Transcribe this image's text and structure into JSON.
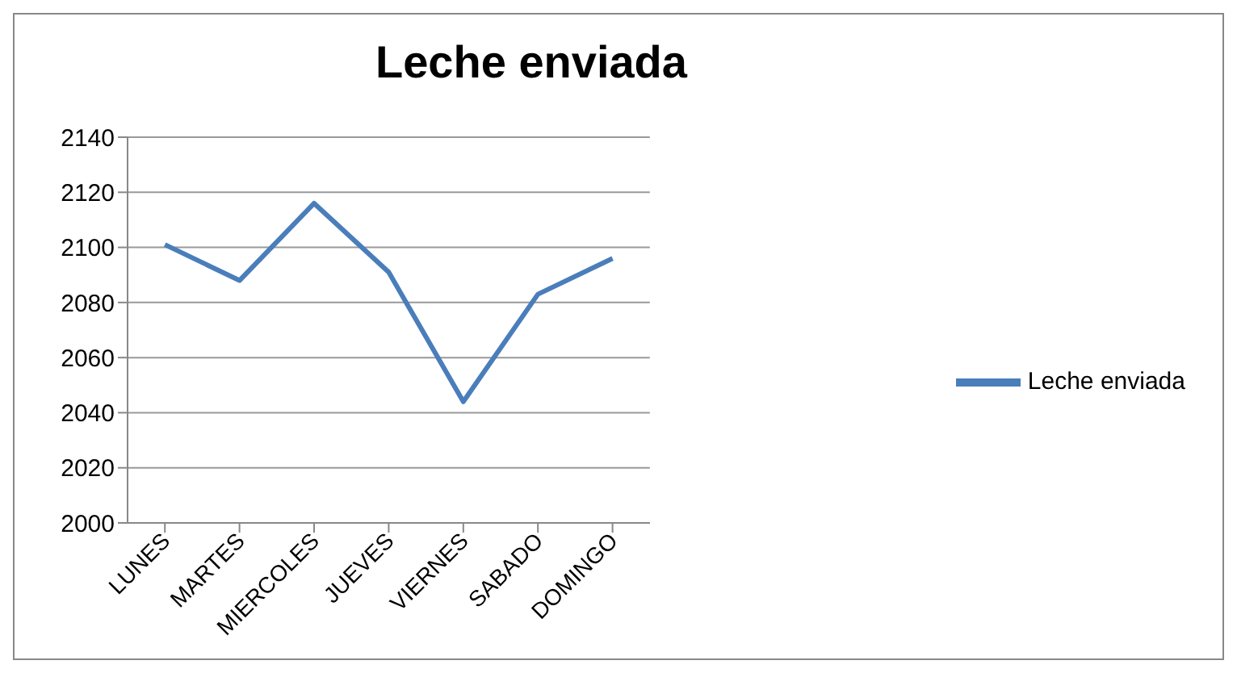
{
  "chart_data": {
    "type": "line",
    "title": "Leche enviada",
    "categories": [
      "LUNES",
      "MARTES",
      "MIERCOLES",
      "JUEVES",
      "VIERNES",
      "SABADO",
      "DOMINGO"
    ],
    "series": [
      {
        "name": "Leche enviada",
        "color": "#4a7ebb",
        "values": [
          2101,
          2088,
          2116,
          2091,
          2044,
          2083,
          2096
        ]
      }
    ],
    "ylim": [
      2000,
      2140
    ],
    "yticks": [
      2000,
      2020,
      2040,
      2060,
      2080,
      2100,
      2120,
      2140
    ],
    "grid": "y",
    "legend": "right",
    "marker": "none"
  }
}
